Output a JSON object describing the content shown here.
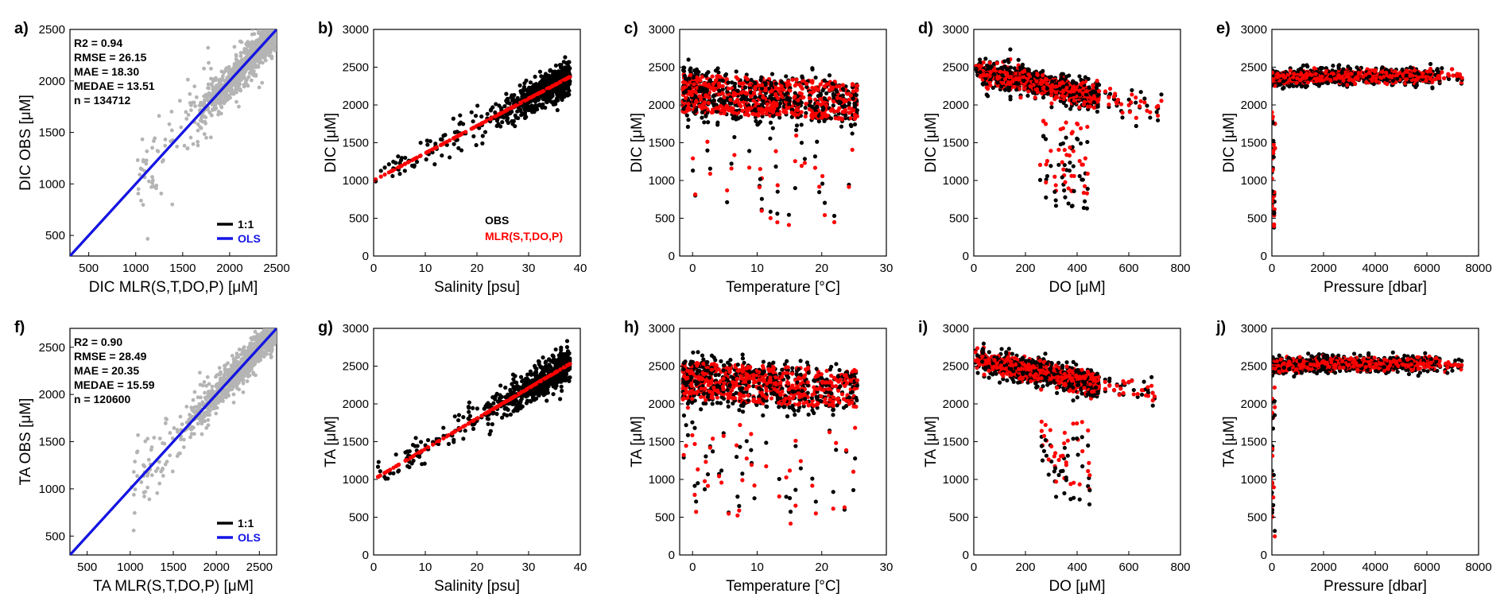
{
  "figure": {
    "colors": {
      "obs": "#000000",
      "model": "#ff0000",
      "scatter": "#b4b4b4",
      "ols": "#1414e6",
      "one_to_one": "#000000"
    },
    "legend_ab": {
      "obs": "OBS",
      "model": "MLR(S,T,DO,P)"
    }
  },
  "chart_data": [
    {
      "id": "a",
      "panel_label": "a)",
      "type": "scatter",
      "row": 0,
      "col": 0,
      "kind": "comparison",
      "xlabel": "DIC MLR(S,T,DO,P) [μM]",
      "ylabel": "DIC OBS [μM]",
      "xlim": [
        300,
        2500
      ],
      "ylim": [
        300,
        2500
      ],
      "xticks": [
        "500",
        "1000",
        "1500",
        "2000",
        "2500"
      ],
      "yticks": [
        "500",
        "1000",
        "1500",
        "2000",
        "2500"
      ],
      "stats": [
        "R2 = 0.94",
        "RMSE = 26.15",
        "MAE = 18.30",
        "MEDAE = 13.51",
        "n = 134712"
      ],
      "legend": [
        "1:1",
        "OLS"
      ]
    },
    {
      "id": "b",
      "panel_label": "b)",
      "type": "scatter",
      "row": 0,
      "col": 1,
      "kind": "property",
      "param": "salinity",
      "xlabel": "Salinity [psu]",
      "ylabel": "DIC [μM]",
      "xlim": [
        0,
        40
      ],
      "ylim": [
        0,
        3000
      ],
      "xticks": [
        "0",
        "10",
        "20",
        "30",
        "40"
      ],
      "yticks": [
        "0",
        "500",
        "1000",
        "1500",
        "2000",
        "2500",
        "3000"
      ],
      "show_legend": true
    },
    {
      "id": "c",
      "panel_label": "c)",
      "type": "scatter",
      "row": 0,
      "col": 2,
      "kind": "property",
      "param": "temperature",
      "xlabel": "Temperature [°C]",
      "ylabel": "DIC [μM]",
      "xlim": [
        -2,
        30
      ],
      "ylim": [
        0,
        3000
      ],
      "xticks": [
        "0",
        "10",
        "20",
        "30"
      ],
      "yticks": [
        "0",
        "500",
        "1000",
        "1500",
        "2000",
        "2500",
        "3000"
      ]
    },
    {
      "id": "d",
      "panel_label": "d)",
      "type": "scatter",
      "row": 0,
      "col": 3,
      "kind": "property",
      "param": "oxygen",
      "xlabel": "DO [μM]",
      "ylabel": "DIC [μM]",
      "xlim": [
        0,
        800
      ],
      "ylim": [
        0,
        3000
      ],
      "xticks": [
        "0",
        "200",
        "400",
        "600",
        "800"
      ],
      "yticks": [
        "0",
        "500",
        "1000",
        "1500",
        "2000",
        "2500",
        "3000"
      ]
    },
    {
      "id": "e",
      "panel_label": "e)",
      "type": "scatter",
      "row": 0,
      "col": 4,
      "kind": "property",
      "param": "pressure",
      "xlabel": "Pressure [dbar]",
      "ylabel": "DIC [μM]",
      "xlim": [
        0,
        8000
      ],
      "ylim": [
        0,
        3000
      ],
      "xticks": [
        "0",
        "2000",
        "4000",
        "6000",
        "8000"
      ],
      "yticks": [
        "0",
        "500",
        "1000",
        "1500",
        "2000",
        "2500",
        "3000"
      ]
    },
    {
      "id": "f",
      "panel_label": "f)",
      "type": "scatter",
      "row": 1,
      "col": 0,
      "kind": "comparison",
      "xlabel": "TA MLR(S,T,DO,P) [μM]",
      "ylabel": "TA OBS [μM]",
      "xlim": [
        300,
        2700
      ],
      "ylim": [
        300,
        2700
      ],
      "xticks": [
        "500",
        "1000",
        "1500",
        "2000",
        "2500"
      ],
      "yticks": [
        "500",
        "1000",
        "1500",
        "2000",
        "2500"
      ],
      "stats": [
        "R2 = 0.90",
        "RMSE = 28.49",
        "MAE = 20.35",
        "MEDAE = 15.59",
        "n = 120600"
      ],
      "legend": [
        "1:1",
        "OLS"
      ]
    },
    {
      "id": "g",
      "panel_label": "g)",
      "type": "scatter",
      "row": 1,
      "col": 1,
      "kind": "property",
      "param": "salinity",
      "xlabel": "Salinity [psu]",
      "ylabel": "TA [μM]",
      "xlim": [
        0,
        40
      ],
      "ylim": [
        0,
        3000
      ],
      "xticks": [
        "0",
        "10",
        "20",
        "30",
        "40"
      ],
      "yticks": [
        "0",
        "500",
        "1000",
        "1500",
        "2000",
        "2500",
        "3000"
      ]
    },
    {
      "id": "h",
      "panel_label": "h)",
      "type": "scatter",
      "row": 1,
      "col": 2,
      "kind": "property",
      "param": "temperature",
      "xlabel": "Temperature [°C]",
      "ylabel": "TA [μM]",
      "xlim": [
        -2,
        30
      ],
      "ylim": [
        0,
        3000
      ],
      "xticks": [
        "0",
        "10",
        "20",
        "30"
      ],
      "yticks": [
        "0",
        "500",
        "1000",
        "1500",
        "2000",
        "2500",
        "3000"
      ]
    },
    {
      "id": "i",
      "panel_label": "i)",
      "type": "scatter",
      "row": 1,
      "col": 3,
      "kind": "property",
      "param": "oxygen",
      "xlabel": "DO [μM]",
      "ylabel": "TA [μM]",
      "xlim": [
        0,
        800
      ],
      "ylim": [
        0,
        3000
      ],
      "xticks": [
        "0",
        "200",
        "400",
        "600",
        "800"
      ],
      "yticks": [
        "0",
        "500",
        "1000",
        "1500",
        "2000",
        "2500",
        "3000"
      ]
    },
    {
      "id": "j",
      "panel_label": "j)",
      "type": "scatter",
      "row": 1,
      "col": 4,
      "kind": "property",
      "param": "pressure",
      "xlabel": "Pressure [dbar]",
      "ylabel": "TA [μM]",
      "xlim": [
        0,
        8000
      ],
      "ylim": [
        0,
        3000
      ],
      "xticks": [
        "0",
        "2000",
        "4000",
        "6000",
        "8000"
      ],
      "yticks": [
        "0",
        "500",
        "1000",
        "1500",
        "2000",
        "2500",
        "3000"
      ]
    }
  ]
}
